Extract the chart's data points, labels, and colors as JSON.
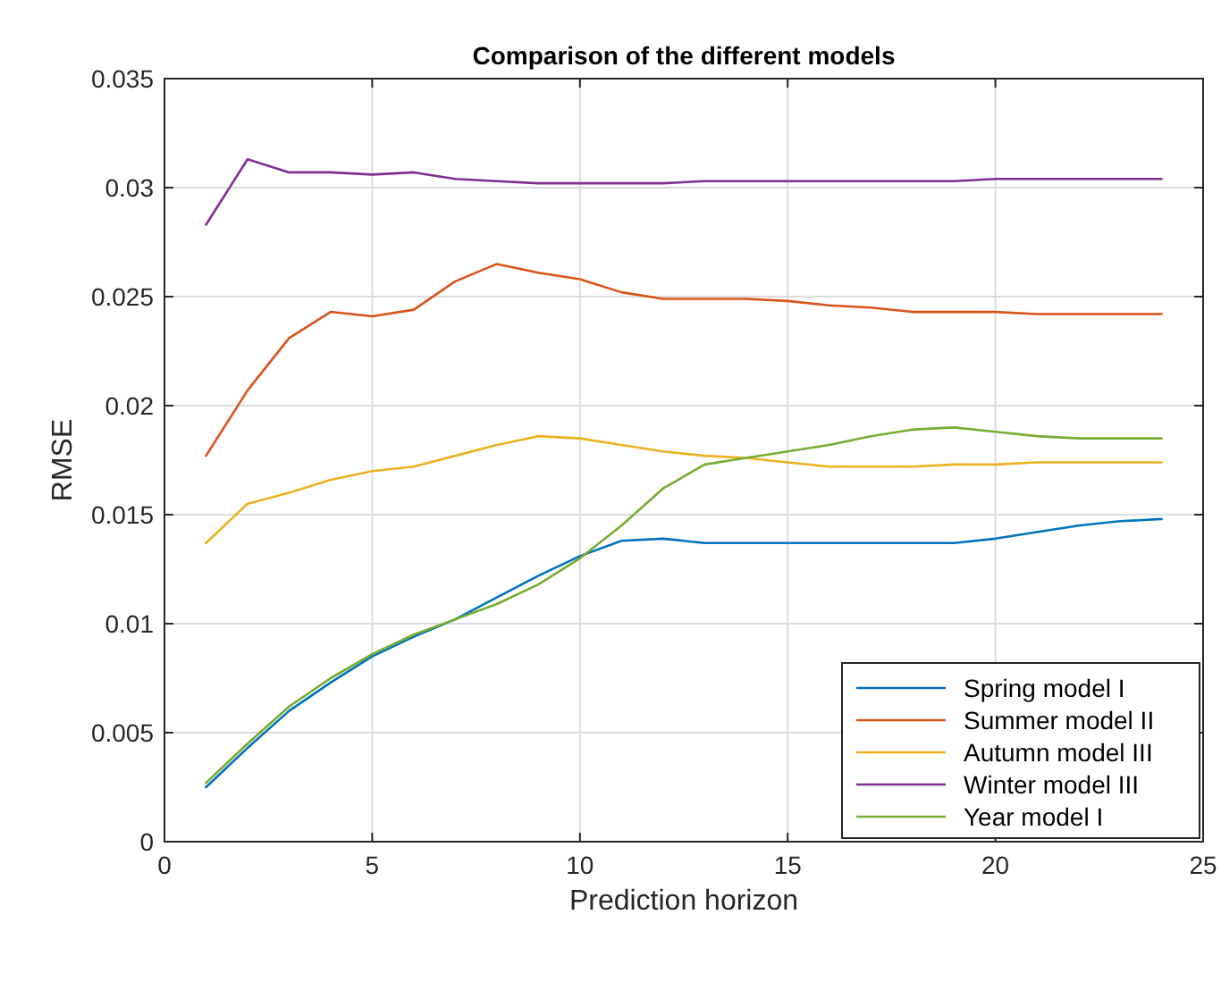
{
  "chart_data": {
    "type": "line",
    "title": "Comparison of the different models",
    "xlabel": "Prediction horizon",
    "ylabel": "RMSE",
    "x": [
      1,
      2,
      3,
      4,
      5,
      6,
      7,
      8,
      9,
      10,
      11,
      12,
      13,
      14,
      15,
      16,
      17,
      18,
      19,
      20,
      21,
      22,
      23,
      24
    ],
    "series": [
      {
        "name": "Spring model I",
        "color": "#0072bd",
        "values": [
          0.0025,
          0.0043,
          0.006,
          0.0073,
          0.0085,
          0.0094,
          0.0102,
          0.0112,
          0.0122,
          0.0131,
          0.0138,
          0.0139,
          0.0137,
          0.0137,
          0.0137,
          0.0137,
          0.0137,
          0.0137,
          0.0137,
          0.0139,
          0.0142,
          0.0145,
          0.0147,
          0.0148
        ]
      },
      {
        "name": "Summer model II",
        "color": "#d95319",
        "values": [
          0.0177,
          0.0207,
          0.0231,
          0.0243,
          0.0241,
          0.0244,
          0.0257,
          0.0265,
          0.0261,
          0.0258,
          0.0252,
          0.0249,
          0.0249,
          0.0249,
          0.0248,
          0.0246,
          0.0245,
          0.0243,
          0.0243,
          0.0243,
          0.0242,
          0.0242,
          0.0242,
          0.0242
        ]
      },
      {
        "name": "Autumn model III",
        "color": "#edb120",
        "values": [
          0.0137,
          0.0155,
          0.016,
          0.0166,
          0.017,
          0.0172,
          0.0177,
          0.0182,
          0.0186,
          0.0185,
          0.0182,
          0.0179,
          0.0177,
          0.0176,
          0.0174,
          0.0172,
          0.0172,
          0.0172,
          0.0173,
          0.0173,
          0.0174,
          0.0174,
          0.0174,
          0.0174
        ]
      },
      {
        "name": "Winter model III",
        "color": "#7e2f8e",
        "values": [
          0.0283,
          0.0313,
          0.0307,
          0.0307,
          0.0306,
          0.0307,
          0.0304,
          0.0303,
          0.0302,
          0.0302,
          0.0302,
          0.0302,
          0.0303,
          0.0303,
          0.0303,
          0.0303,
          0.0303,
          0.0303,
          0.0303,
          0.0304,
          0.0304,
          0.0304,
          0.0304,
          0.0304
        ]
      },
      {
        "name": "Year model I",
        "color": "#77ac30",
        "values": [
          0.0027,
          0.0045,
          0.0062,
          0.0075,
          0.0086,
          0.0095,
          0.0102,
          0.0109,
          0.0118,
          0.013,
          0.0145,
          0.0162,
          0.0173,
          0.0176,
          0.0179,
          0.0182,
          0.0186,
          0.0189,
          0.019,
          0.0188,
          0.0186,
          0.0185,
          0.0185,
          0.0185
        ]
      }
    ],
    "xlim": [
      0,
      25
    ],
    "xticks": [
      0,
      5,
      10,
      15,
      20,
      25
    ],
    "ylim": [
      0,
      0.035
    ],
    "yticks": [
      0,
      0.005,
      0.01,
      0.015,
      0.02,
      0.025,
      0.03,
      0.035
    ],
    "grid": true,
    "legend": "bottom right",
    "line_style": "solid"
  }
}
